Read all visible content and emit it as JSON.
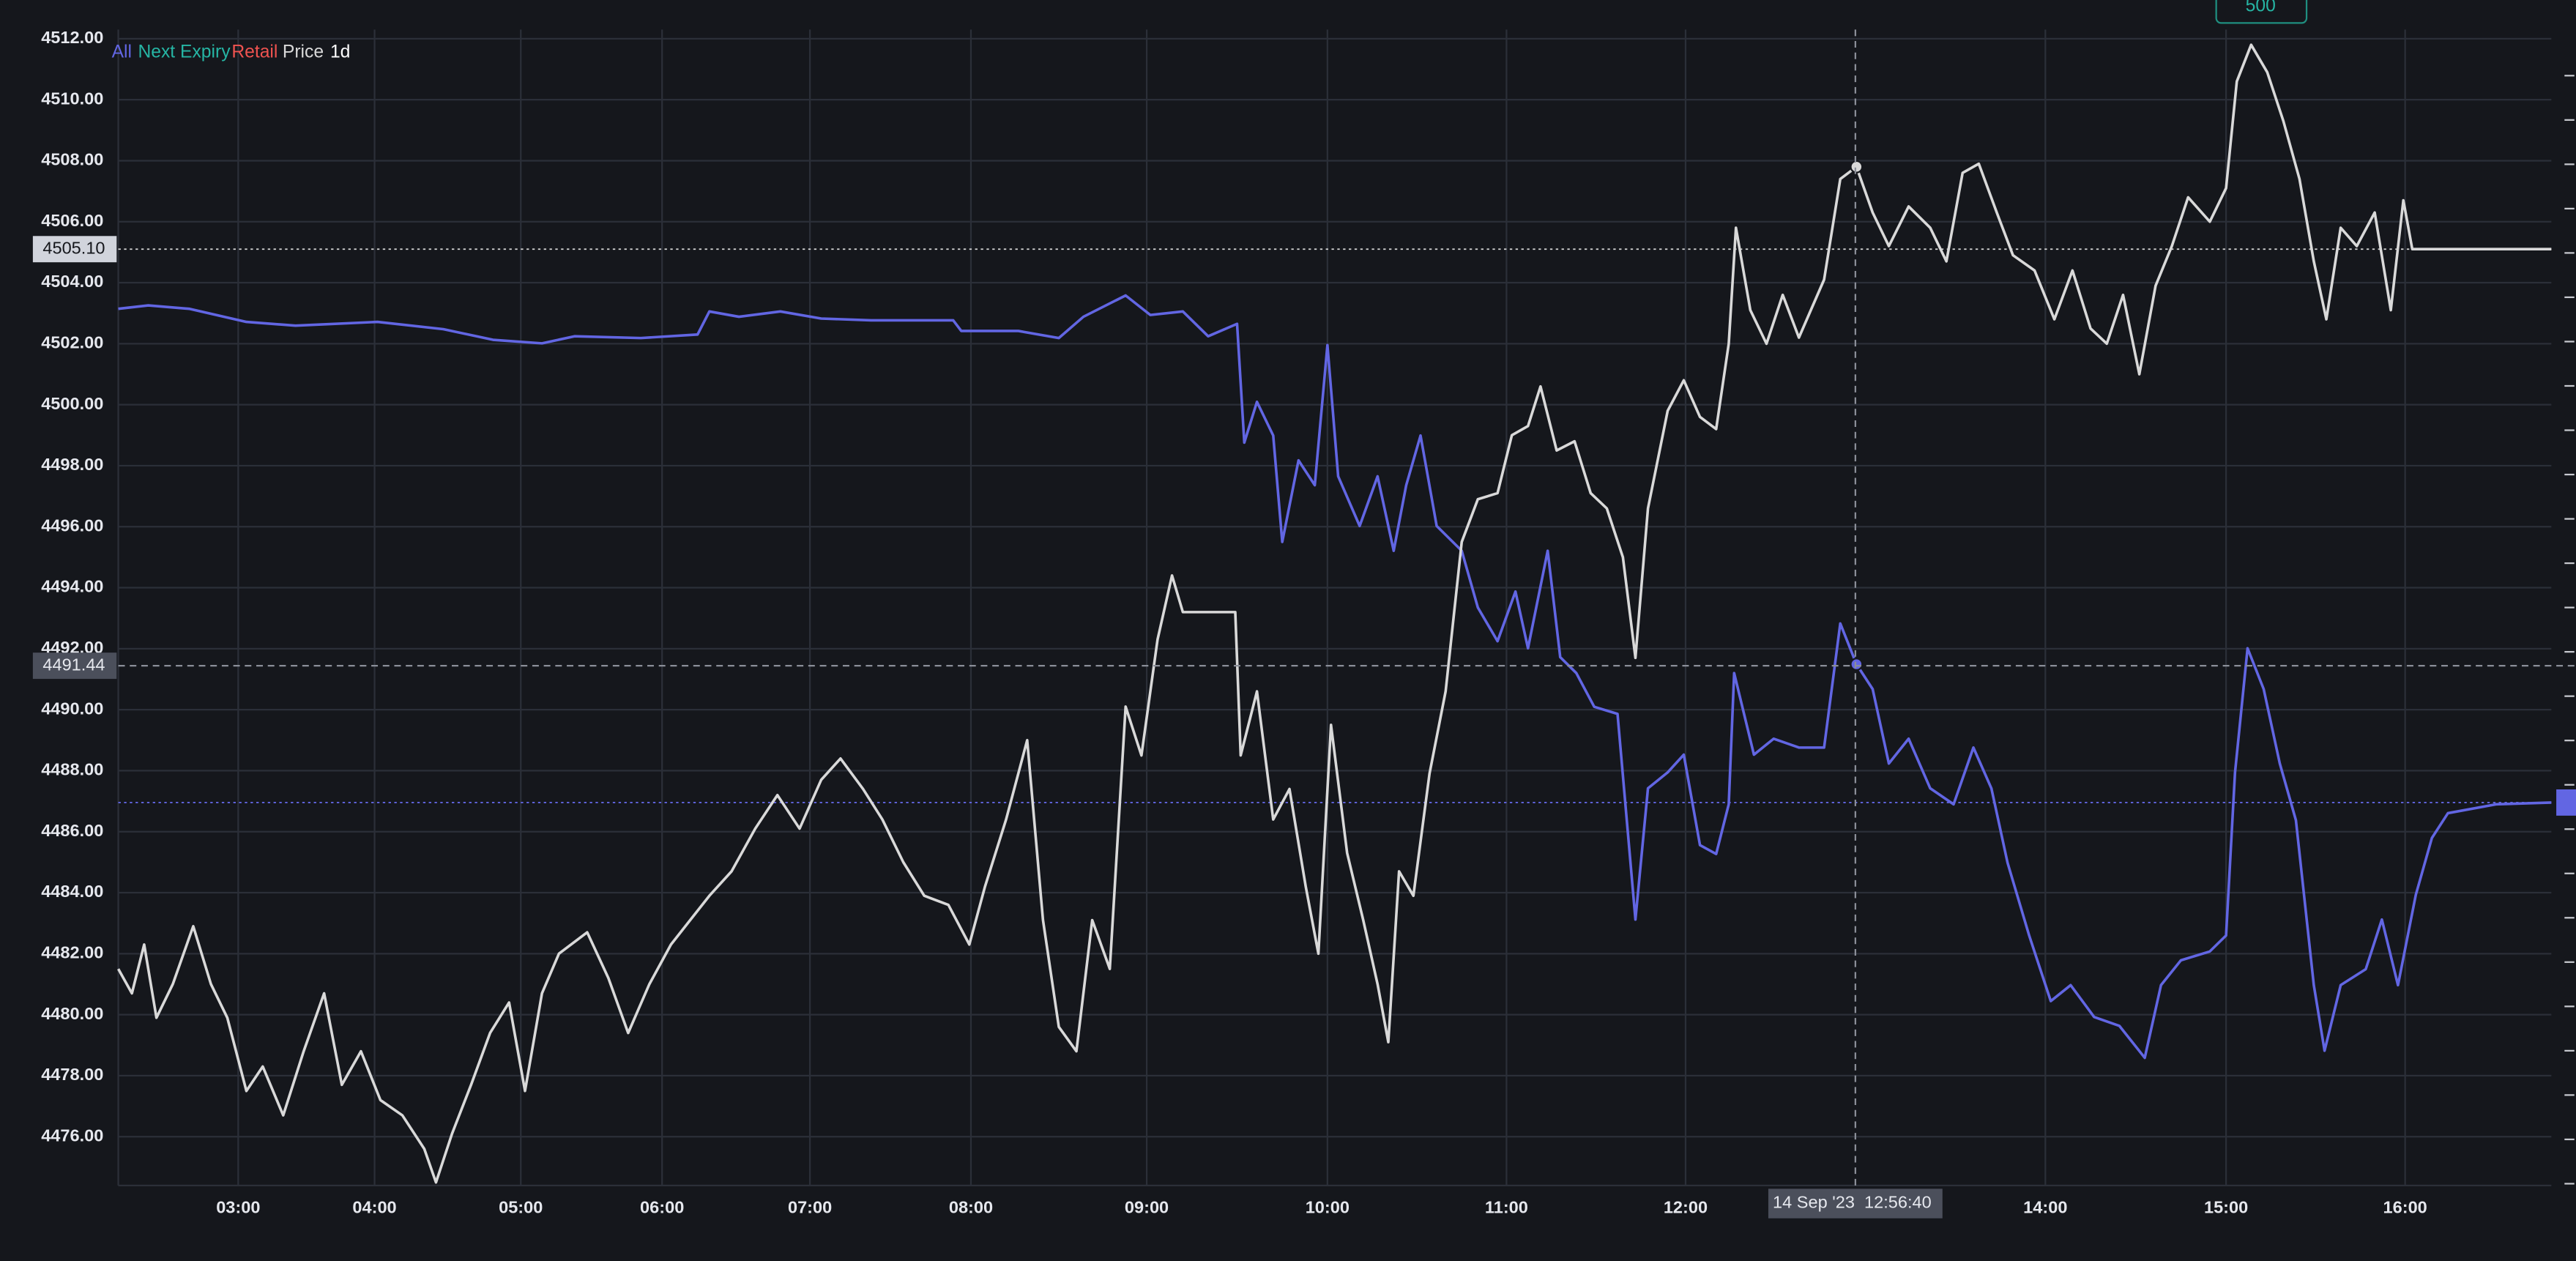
{
  "chart_data": {
    "type": "line",
    "xticks": [
      {
        "value": 3,
        "label": "03:00"
      },
      {
        "value": 4,
        "label": "04:00"
      },
      {
        "value": 5,
        "label": "05:00"
      },
      {
        "value": 6,
        "label": "06:00"
      },
      {
        "value": 7,
        "label": "07:00"
      },
      {
        "value": 8,
        "label": "08:00"
      },
      {
        "value": 9,
        "label": "09:00"
      },
      {
        "value": 10,
        "label": "10:00"
      },
      {
        "value": 11,
        "label": "11:00"
      },
      {
        "value": 12,
        "label": "12:00"
      },
      {
        "value": 14,
        "label": "14:00"
      },
      {
        "value": 15,
        "label": "15:00"
      },
      {
        "value": 16,
        "label": "16:00"
      }
    ],
    "xlim": [
      2.12,
      16.82
    ],
    "ylim": [
      4474.4,
      4512.3
    ],
    "yticks": [
      {
        "value": 4476,
        "label": "4476.00"
      },
      {
        "value": 4478,
        "label": "4478.00"
      },
      {
        "value": 4480,
        "label": "4480.00"
      },
      {
        "value": 4482,
        "label": "4482.00"
      },
      {
        "value": 4484,
        "label": "4484.00"
      },
      {
        "value": 4486,
        "label": "4486.00"
      },
      {
        "value": 4488,
        "label": "4488.00"
      },
      {
        "value": 4490,
        "label": "4490.00"
      },
      {
        "value": 4492,
        "label": "4492.00"
      },
      {
        "value": 4494,
        "label": "4494.00"
      },
      {
        "value": 4496,
        "label": "4496.00"
      },
      {
        "value": 4498,
        "label": "4498.00"
      },
      {
        "value": 4500,
        "label": "4500.00"
      },
      {
        "value": 4502,
        "label": "4502.00"
      },
      {
        "value": 4504,
        "label": "4504.00"
      },
      {
        "value": 4506,
        "label": "4506.00"
      },
      {
        "value": 4508,
        "label": "4508.00"
      },
      {
        "value": 4510,
        "label": "4510.00"
      },
      {
        "value": 4512,
        "label": "4512.00"
      }
    ],
    "y2lim": [
      -50.1,
      15.1
    ],
    "y2ticks": [
      -50,
      -47.5,
      -45,
      -42.5,
      -40,
      -37.5,
      -35,
      -32.5,
      -30,
      -27.5,
      -25,
      -22.5,
      -20,
      -17.5,
      -15,
      -12.5,
      -10,
      -7.5,
      -5,
      -2.5,
      0,
      2.5,
      5,
      7.5,
      10,
      12.5
    ],
    "grid": true,
    "series": [
      {
        "name": "All",
        "color": "#6266e3",
        "axis": "y2",
        "x": [
          2.12,
          2.34,
          2.64,
          3.06,
          3.42,
          4.02,
          4.47,
          4.81,
          5.15,
          5.38,
          5.85,
          6.24,
          6.32,
          6.52,
          6.8,
          7.07,
          7.38,
          7.89,
          7.94,
          8.27,
          8.5,
          8.64,
          8.88,
          9.02,
          9.2,
          9.34,
          9.5,
          9.54,
          9.61,
          9.7,
          9.75,
          9.84,
          9.93,
          10.0,
          10.06,
          10.18,
          10.28,
          10.37,
          10.44,
          10.52,
          10.61,
          10.75,
          10.84,
          10.95,
          11.05,
          11.12,
          11.23,
          11.3,
          11.39,
          11.49,
          11.62,
          11.72,
          11.79,
          11.9,
          11.99,
          12.08,
          12.17,
          12.24,
          12.27,
          12.38,
          12.49,
          12.63,
          12.77,
          12.86,
          12.95,
          13.04,
          13.13,
          13.24,
          13.36,
          13.49,
          13.6,
          13.7,
          13.79,
          13.91,
          14.03,
          14.14,
          14.27,
          14.41,
          14.55,
          14.64,
          14.75,
          14.91,
          15.0,
          15.05,
          15.12,
          15.21,
          15.3,
          15.39,
          15.49,
          15.55,
          15.64,
          15.78,
          15.87,
          15.96,
          16.06,
          16.15,
          16.24,
          16.51,
          16.82
        ],
        "values": [
          -0.65,
          -0.46,
          -0.65,
          -1.39,
          -1.6,
          -1.39,
          -1.8,
          -2.4,
          -2.6,
          -2.2,
          -2.3,
          -2.1,
          -0.8,
          -1.1,
          -0.8,
          -1.2,
          -1.3,
          -1.3,
          -1.9,
          -1.9,
          -2.3,
          -1.1,
          0.1,
          -1.0,
          -0.8,
          -2.2,
          -1.5,
          -8.2,
          -5.9,
          -7.8,
          -13.8,
          -9.2,
          -10.6,
          -2.7,
          -10.1,
          -12.9,
          -10.1,
          -14.3,
          -10.6,
          -7.8,
          -12.9,
          -14.3,
          -17.5,
          -19.4,
          -16.6,
          -19.8,
          -14.3,
          -20.3,
          -21.2,
          -23.1,
          -23.5,
          -35.1,
          -27.7,
          -26.8,
          -25.8,
          -30.9,
          -31.4,
          -28.6,
          -21.2,
          -25.8,
          -24.9,
          -25.4,
          -25.4,
          -18.4,
          -20.7,
          -22.1,
          -26.3,
          -24.9,
          -27.7,
          -28.6,
          -25.4,
          -27.7,
          -31.9,
          -36.0,
          -39.7,
          -38.8,
          -40.6,
          -41.1,
          -42.9,
          -38.8,
          -37.4,
          -36.9,
          -36.0,
          -26.8,
          -19.8,
          -22.1,
          -26.3,
          -29.5,
          -38.8,
          -42.5,
          -38.8,
          -37.9,
          -35.1,
          -38.8,
          -33.7,
          -30.5,
          -29.1,
          -28.6,
          -28.5
        ]
      },
      {
        "name": "Price",
        "color": "#d9d9d9",
        "x": [
          2.12,
          2.22,
          2.31,
          2.4,
          2.52,
          2.67,
          2.8,
          2.92,
          3.06,
          3.18,
          3.33,
          3.48,
          3.63,
          3.76,
          3.9,
          4.04,
          4.19,
          4.34,
          4.42,
          4.53,
          4.66,
          4.79,
          4.92,
          5.03,
          5.15,
          5.27,
          5.47,
          5.62,
          5.76,
          5.91,
          6.06,
          6.19,
          6.32,
          6.47,
          6.63,
          6.78,
          6.93,
          7.07,
          7.19,
          7.33,
          7.45,
          7.58,
          7.71,
          7.86,
          7.99,
          8.08,
          8.2,
          8.32,
          8.41,
          8.5,
          8.6,
          8.69,
          8.79,
          8.88,
          8.97,
          9.06,
          9.14,
          9.2,
          9.49,
          9.52,
          9.61,
          9.7,
          9.79,
          9.88,
          9.95,
          10.02,
          10.11,
          10.2,
          10.28,
          10.34,
          10.4,
          10.48,
          10.57,
          10.66,
          10.75,
          10.84,
          10.95,
          11.03,
          11.12,
          11.19,
          11.28,
          11.38,
          11.47,
          11.56,
          11.65,
          11.72,
          11.79,
          11.9,
          11.99,
          12.08,
          12.17,
          12.24,
          12.28,
          12.36,
          12.45,
          12.54,
          12.63,
          12.77,
          12.86,
          12.95,
          13.04,
          13.13,
          13.24,
          13.36,
          13.45,
          13.54,
          13.63,
          13.73,
          13.82,
          13.94,
          14.05,
          14.15,
          14.25,
          14.34,
          14.43,
          14.52,
          14.61,
          14.7,
          14.79,
          14.91,
          15.0,
          15.06,
          15.14,
          15.23,
          15.32,
          15.41,
          15.49,
          15.56,
          15.64,
          15.73,
          15.83,
          15.92,
          15.99,
          16.04,
          16.82
        ],
        "values": [
          4481.5,
          4480.7,
          4482.3,
          4479.9,
          4481.0,
          4482.9,
          4481.0,
          4479.9,
          4477.5,
          4478.3,
          4476.7,
          4478.8,
          4480.7,
          4477.7,
          4478.8,
          4477.2,
          4476.7,
          4475.6,
          4474.5,
          4476.1,
          4477.7,
          4479.4,
          4480.4,
          4477.5,
          4480.7,
          4482.0,
          4482.7,
          4481.2,
          4479.4,
          4481.0,
          4482.3,
          4483.1,
          4483.9,
          4484.7,
          4486.1,
          4487.2,
          4486.1,
          4487.7,
          4488.4,
          4487.4,
          4486.4,
          4485.0,
          4483.9,
          4483.6,
          4482.3,
          4484.2,
          4486.4,
          4489.0,
          4483.1,
          4479.6,
          4478.8,
          4483.1,
          4481.5,
          4490.1,
          4488.5,
          4492.3,
          4494.4,
          4493.2,
          4493.2,
          4488.5,
          4490.6,
          4486.4,
          4487.4,
          4484.2,
          4482.0,
          4489.5,
          4485.3,
          4483.1,
          4481.0,
          4479.1,
          4484.7,
          4483.9,
          4487.9,
          4490.6,
          4495.5,
          4496.9,
          4497.1,
          4499.0,
          4499.3,
          4500.6,
          4498.5,
          4498.8,
          4497.1,
          4496.6,
          4495.0,
          4491.7,
          4496.6,
          4499.8,
          4500.8,
          4499.6,
          4499.2,
          4502.0,
          4505.8,
          4503.1,
          4502.0,
          4503.6,
          4502.2,
          4504.1,
          4507.4,
          4507.8,
          4506.3,
          4505.2,
          4506.5,
          4505.8,
          4504.7,
          4507.6,
          4507.9,
          4506.3,
          4504.9,
          4504.4,
          4502.8,
          4504.4,
          4502.5,
          4502.0,
          4503.6,
          4501.0,
          4503.9,
          4505.2,
          4506.8,
          4506.0,
          4507.1,
          4510.6,
          4511.8,
          4510.9,
          4509.3,
          4507.4,
          4504.7,
          4502.8,
          4505.8,
          4505.2,
          4506.3,
          4503.1,
          4506.7,
          4505.1,
          4505.1
        ]
      }
    ],
    "inactive_series": [
      {
        "name": "Next Expiry",
        "color": "#26b5a4"
      },
      {
        "name": "Retail",
        "color": "#ef5350"
      }
    ],
    "interval": "1d",
    "last_price_label": {
      "value": 4505.1,
      "label": "4505.10"
    },
    "crosshair": {
      "x": 12.944,
      "x_label": "14 Sep '23  12:56:40",
      "y": {
        "value": 4491.44,
        "label": "4491.44"
      }
    },
    "top_button": "500"
  }
}
